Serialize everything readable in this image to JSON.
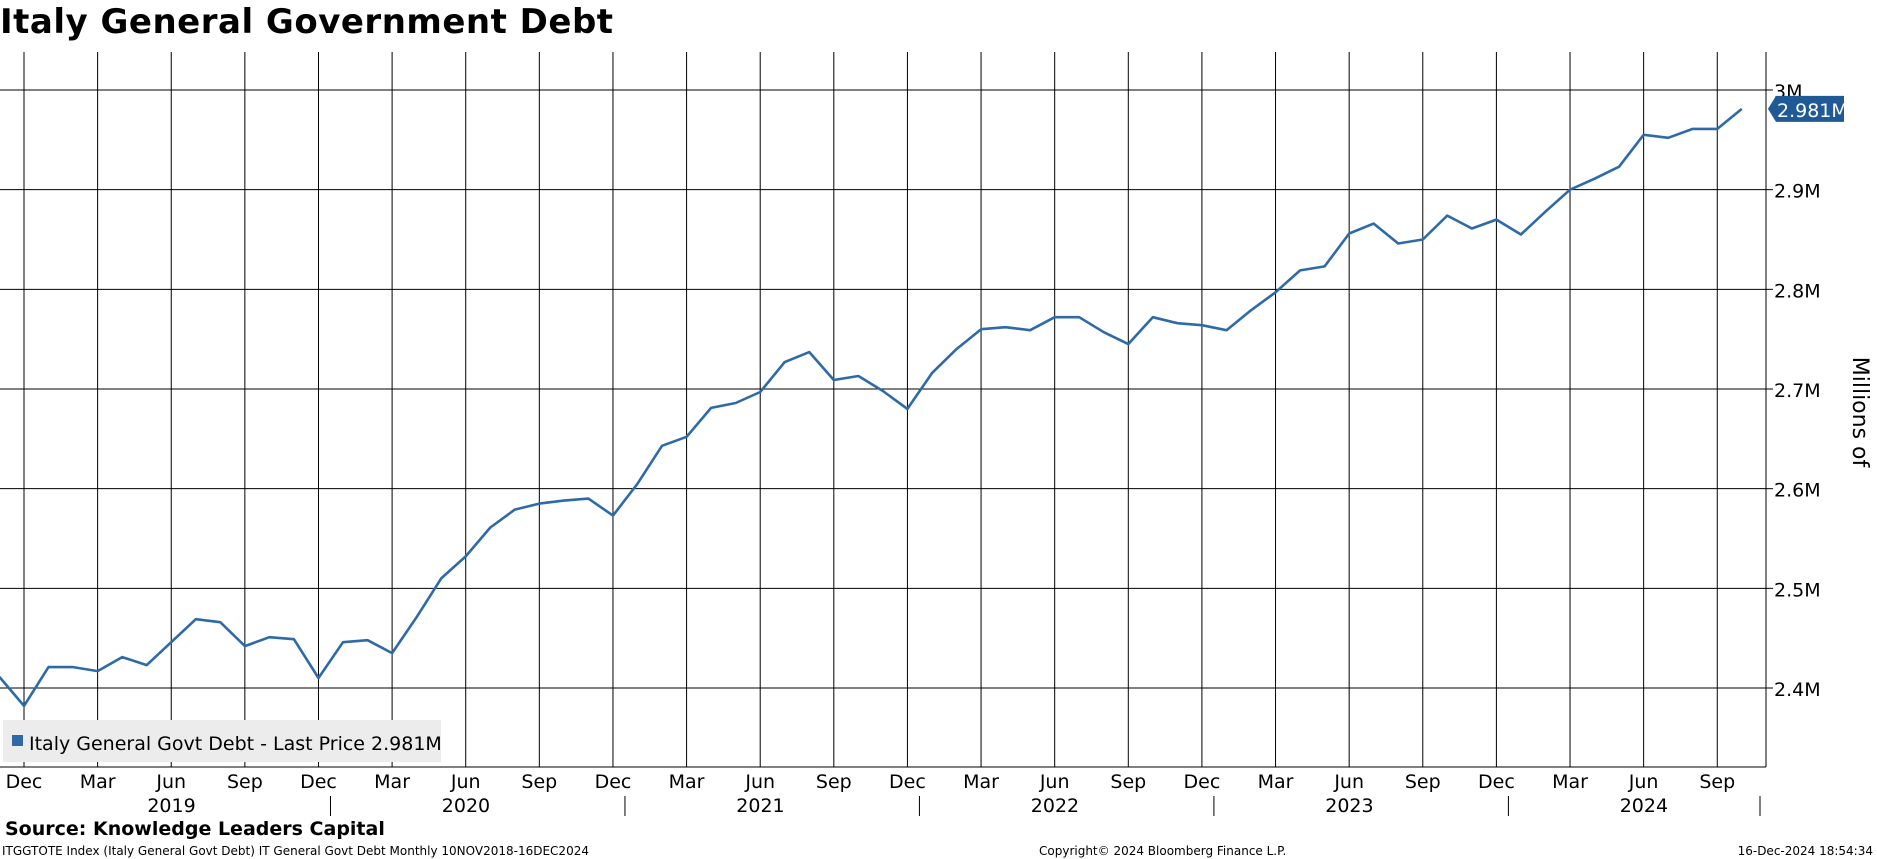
{
  "chart_data": {
    "type": "line",
    "title": "Italy General Government Debt",
    "ylabel": "Millions of",
    "ylim": [
      2.32,
      3.04
    ],
    "y_ticks": [
      2.4,
      2.5,
      2.6,
      2.7,
      2.8,
      2.9,
      3.0
    ],
    "y_tick_labels": [
      "2.4M",
      "2.5M",
      "2.6M",
      "2.7M",
      "2.8M",
      "2.9M",
      "3M"
    ],
    "x_range": [
      "2018-11",
      "2024-12"
    ],
    "x_tick_labels": [
      {
        "date": "2018-12",
        "label": "Dec"
      },
      {
        "date": "2019-03",
        "label": "Mar"
      },
      {
        "date": "2019-06",
        "label": "Jun"
      },
      {
        "date": "2019-09",
        "label": "Sep"
      },
      {
        "date": "2019-12",
        "label": "Dec"
      },
      {
        "date": "2020-03",
        "label": "Mar"
      },
      {
        "date": "2020-06",
        "label": "Jun"
      },
      {
        "date": "2020-09",
        "label": "Sep"
      },
      {
        "date": "2020-12",
        "label": "Dec"
      },
      {
        "date": "2021-03",
        "label": "Mar"
      },
      {
        "date": "2021-06",
        "label": "Jun"
      },
      {
        "date": "2021-09",
        "label": "Sep"
      },
      {
        "date": "2021-12",
        "label": "Dec"
      },
      {
        "date": "2022-03",
        "label": "Mar"
      },
      {
        "date": "2022-06",
        "label": "Jun"
      },
      {
        "date": "2022-09",
        "label": "Sep"
      },
      {
        "date": "2022-12",
        "label": "Dec"
      },
      {
        "date": "2023-03",
        "label": "Mar"
      },
      {
        "date": "2023-06",
        "label": "Jun"
      },
      {
        "date": "2023-09",
        "label": "Sep"
      },
      {
        "date": "2023-12",
        "label": "Dec"
      },
      {
        "date": "2024-03",
        "label": "Mar"
      },
      {
        "date": "2024-06",
        "label": "Jun"
      },
      {
        "date": "2024-09",
        "label": "Sep"
      }
    ],
    "year_labels": [
      "2019",
      "2020",
      "2021",
      "2022",
      "2023",
      "2024"
    ],
    "grid": true,
    "legend": "bottom-left",
    "series": [
      {
        "name": "Italy General Govt Debt - Last Price 2.981M",
        "color": "#2e6aa8",
        "x": [
          "2018-11",
          "2018-12",
          "2019-01",
          "2019-02",
          "2019-03",
          "2019-04",
          "2019-05",
          "2019-06",
          "2019-07",
          "2019-08",
          "2019-09",
          "2019-10",
          "2019-11",
          "2019-12",
          "2020-01",
          "2020-02",
          "2020-03",
          "2020-04",
          "2020-05",
          "2020-06",
          "2020-07",
          "2020-08",
          "2020-09",
          "2020-10",
          "2020-11",
          "2020-12",
          "2021-01",
          "2021-02",
          "2021-03",
          "2021-04",
          "2021-05",
          "2021-06",
          "2021-07",
          "2021-08",
          "2021-09",
          "2021-10",
          "2021-11",
          "2021-12",
          "2022-01",
          "2022-02",
          "2022-03",
          "2022-04",
          "2022-05",
          "2022-06",
          "2022-07",
          "2022-08",
          "2022-09",
          "2022-10",
          "2022-11",
          "2022-12",
          "2023-01",
          "2023-02",
          "2023-03",
          "2023-04",
          "2023-05",
          "2023-06",
          "2023-07",
          "2023-08",
          "2023-09",
          "2023-10",
          "2023-11",
          "2023-12",
          "2024-01",
          "2024-02",
          "2024-03",
          "2024-04",
          "2024-05",
          "2024-06",
          "2024-07",
          "2024-08",
          "2024-09",
          "2024-10"
        ],
        "values": [
          2.411,
          2.382,
          2.421,
          2.421,
          2.417,
          2.431,
          2.423,
          2.446,
          2.469,
          2.466,
          2.442,
          2.451,
          2.449,
          2.41,
          2.446,
          2.448,
          2.435,
          2.471,
          2.51,
          2.532,
          2.561,
          2.579,
          2.585,
          2.588,
          2.59,
          2.573,
          2.605,
          2.643,
          2.652,
          2.681,
          2.686,
          2.697,
          2.727,
          2.737,
          2.709,
          2.713,
          2.698,
          2.68,
          2.716,
          2.74,
          2.76,
          2.762,
          2.759,
          2.772,
          2.772,
          2.757,
          2.745,
          2.772,
          2.766,
          2.764,
          2.759,
          2.779,
          2.797,
          2.819,
          2.823,
          2.856,
          2.866,
          2.846,
          2.85,
          2.874,
          2.861,
          2.87,
          2.855,
          2.878,
          2.9,
          2.911,
          2.923,
          2.955,
          2.952,
          2.961,
          2.961,
          2.981
        ]
      }
    ],
    "last_value_label": "2.981M",
    "legend_text": "Italy General Govt Debt - Last Price 2.981M"
  },
  "footer": {
    "source": "Source: Knowledge Leaders Capital",
    "ticker_info": "ITGGTOTE Index (Italy General Govt Debt) IT General Govt Debt  Monthly 10NOV2018-16DEC2024",
    "copyright": "Copyright© 2024 Bloomberg Finance L.P.",
    "timestamp": "16-Dec-2024 18:54:34"
  },
  "colors": {
    "line": "#2e6aa8",
    "badge": "#1f5a97",
    "legend_bg": "#ececec"
  }
}
